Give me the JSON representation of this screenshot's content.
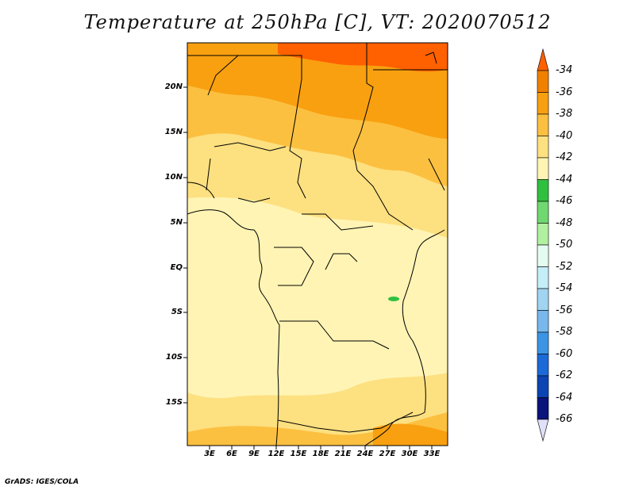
{
  "title": "Temperature at 250hPa [C], VT: 2020070512",
  "footer": "GrADS: IGES/COLA",
  "lat_labels": [
    "20N",
    "15N",
    "10N",
    "5N",
    "EQ",
    "5S",
    "10S",
    "15S"
  ],
  "lon_labels": [
    "3E",
    "6E",
    "9E",
    "12E",
    "15E",
    "18E",
    "21E",
    "24E",
    "27E",
    "30E",
    "33E"
  ],
  "colorbar": {
    "levels": [
      "-34",
      "-36",
      "-38",
      "-40",
      "-42",
      "-44",
      "-46",
      "-48",
      "-50",
      "-52",
      "-54",
      "-56",
      "-58",
      "-60",
      "-62",
      "-64",
      "-66"
    ],
    "colors": [
      "#ff6000",
      "#f08000",
      "#f8a010",
      "#fcc040",
      "#fde080",
      "#fff4b4",
      "#30c040",
      "#70d870",
      "#b0f0a0",
      "#e4fcf0",
      "#c4eef8",
      "#a0d4f0",
      "#78b8ec",
      "#3c94e4",
      "#1c6ad8",
      "#0c44b4",
      "#0a147a",
      "#e0e0f8"
    ]
  },
  "map_colors": {
    "deep": "#ff6000",
    "orange": "#f8a010",
    "amber": "#fcc040",
    "yellow": "#fde080",
    "pale": "#fff4b4",
    "green": "#30c040"
  }
}
